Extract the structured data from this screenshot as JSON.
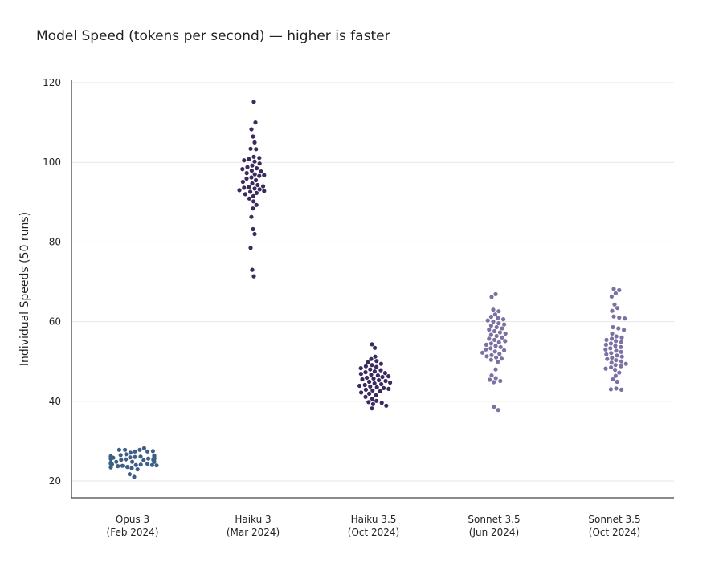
{
  "chart_data": {
    "type": "scatter",
    "title": "Model Speed (tokens per second)  — higher is faster",
    "ylabel": "Individual Speeds (50 runs)",
    "xlabel": "",
    "ylim": [
      15,
      120
    ],
    "yticks": [
      20,
      40,
      60,
      80,
      100,
      120
    ],
    "grid": true,
    "categories": [
      {
        "line1": "Opus 3",
        "line2": "(Feb 2024)"
      },
      {
        "line1": "Haiku 3",
        "line2": "(Mar 2024)"
      },
      {
        "line1": "Haiku 3.5",
        "line2": "(Oct 2024)"
      },
      {
        "line1": "Sonnet 3.5",
        "line2": "(Jun 2024)"
      },
      {
        "line1": "Sonnet 3.5",
        "line2": "(Oct 2024)"
      }
    ],
    "series": [
      {
        "color": "#3b5f86",
        "values": [
          25.9,
          23.2,
          24.0,
          26.0,
          25.4,
          23.5,
          26.1,
          25.3,
          24.1,
          25.2,
          27.4,
          24.8,
          26.7,
          25.6,
          23.8,
          24.8,
          24.3,
          22.9,
          26.5,
          25.8,
          21.0,
          25.3,
          27.1,
          27.8,
          25.5,
          25.5,
          24.2,
          25.6,
          27.8,
          25.5,
          23.7,
          26.1,
          25.8,
          28.2,
          24.0,
          26.4,
          24.5,
          27.4,
          24.6,
          23.9,
          23.4,
          25.7,
          24.3,
          25.8,
          27.8,
          27.5,
          21.7,
          24.8,
          26.2,
          24.8
        ]
      },
      {
        "color": "#3b2a5e",
        "values": [
          115.2,
          110.0,
          108.3,
          106.5,
          105.0,
          103.4,
          103.3,
          101.4,
          101.1,
          100.8,
          100.5,
          100.2,
          99.7,
          99.2,
          98.8,
          98.5,
          98.3,
          97.9,
          97.7,
          97.3,
          97.0,
          96.8,
          96.6,
          96.2,
          95.9,
          95.5,
          95.1,
          94.7,
          94.3,
          94.0,
          93.8,
          93.6,
          93.4,
          93.2,
          93.0,
          92.8,
          92.6,
          92.3,
          92.0,
          91.5,
          90.9,
          90.2,
          89.3,
          88.4,
          86.3,
          83.2,
          82.0,
          78.5,
          73.0,
          71.4
        ]
      },
      {
        "color": "#3b2a5e",
        "values": [
          54.3,
          53.4,
          51.2,
          50.6,
          50.1,
          49.8,
          49.4,
          49.1,
          48.8,
          48.6,
          48.3,
          48.0,
          47.8,
          47.5,
          47.3,
          47.1,
          46.9,
          46.7,
          46.5,
          46.3,
          46.1,
          45.9,
          45.7,
          45.5,
          45.3,
          45.1,
          44.9,
          44.7,
          44.5,
          44.3,
          44.1,
          43.9,
          43.7,
          43.5,
          43.3,
          43.1,
          42.9,
          42.7,
          42.5,
          42.2,
          41.9,
          41.5,
          41.1,
          40.6,
          40.1,
          39.8,
          39.6,
          39.3,
          38.9,
          38.2
        ]
      },
      {
        "color": "#7d70a3",
        "values": [
          66.9,
          66.2,
          63.0,
          62.6,
          61.8,
          61.2,
          60.9,
          60.6,
          60.3,
          60.0,
          59.6,
          59.3,
          59.0,
          58.6,
          58.3,
          58.0,
          57.6,
          57.3,
          57.0,
          56.7,
          56.4,
          56.0,
          55.7,
          55.4,
          55.1,
          54.8,
          54.5,
          54.2,
          53.9,
          53.6,
          53.3,
          53.0,
          52.8,
          52.5,
          52.2,
          51.9,
          51.6,
          51.3,
          51.0,
          50.7,
          50.4,
          49.9,
          48.0,
          46.5,
          45.8,
          45.4,
          45.1,
          44.8,
          38.6,
          37.8
        ]
      },
      {
        "color": "#7d70a3",
        "values": [
          68.2,
          67.9,
          67.1,
          66.3,
          64.3,
          63.4,
          62.7,
          61.3,
          61.0,
          60.8,
          58.6,
          58.3,
          57.9,
          57.0,
          56.3,
          56.0,
          55.7,
          55.4,
          55.1,
          54.8,
          54.5,
          54.2,
          53.9,
          53.6,
          53.3,
          53.0,
          52.7,
          52.4,
          52.1,
          51.8,
          51.5,
          51.2,
          50.9,
          50.6,
          50.3,
          50.0,
          49.7,
          49.4,
          49.1,
          48.8,
          48.5,
          48.2,
          47.9,
          47.2,
          46.4,
          45.5,
          44.9,
          43.2,
          43.0,
          42.9
        ]
      }
    ]
  }
}
